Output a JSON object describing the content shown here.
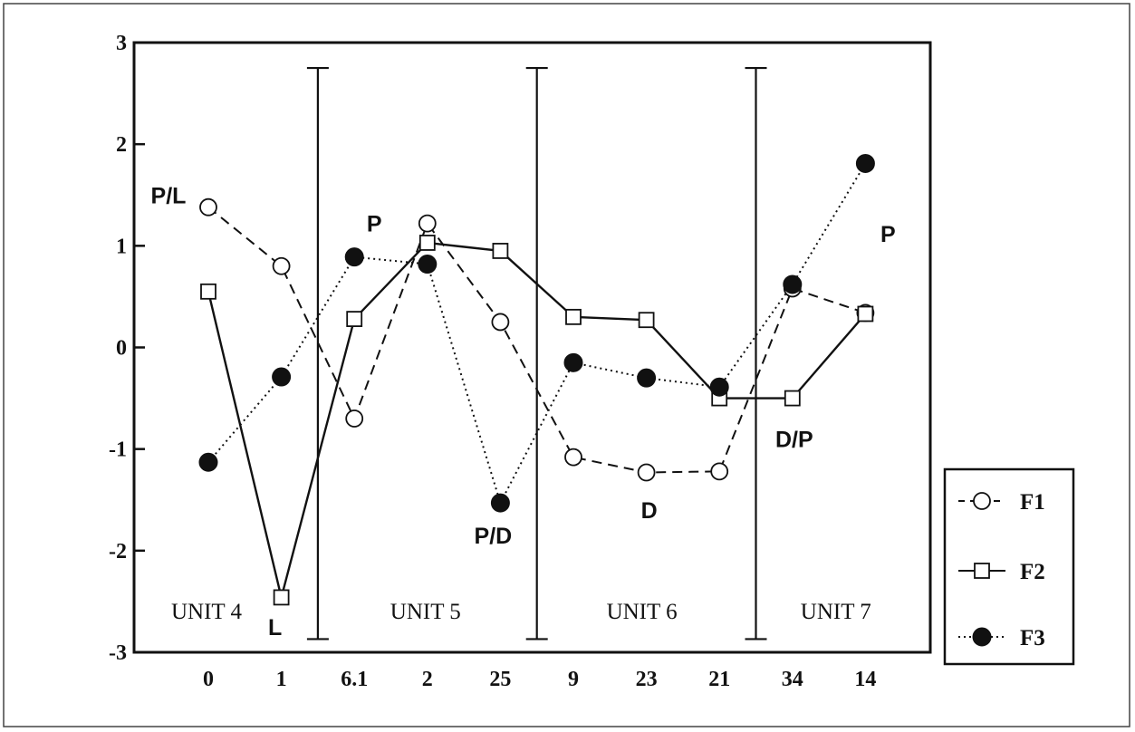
{
  "chart_data": {
    "type": "line",
    "categories": [
      "0",
      "1",
      "6.1",
      "2",
      "25",
      "9",
      "23",
      "21",
      "34",
      "14"
    ],
    "ylim": [
      -3,
      3
    ],
    "yticks": [
      "3",
      "2",
      "1",
      "0",
      "-1",
      "-2",
      "-3"
    ],
    "grid": false,
    "legend_position": "bottom-right, outside plot",
    "series": [
      {
        "name": "F1",
        "marker": "open-circle",
        "line": "dashed",
        "values": [
          1.38,
          0.8,
          -0.7,
          1.22,
          0.25,
          -1.08,
          -1.23,
          -1.22,
          0.58,
          0.34
        ]
      },
      {
        "name": "F2",
        "marker": "open-square",
        "line": "solid",
        "values": [
          0.55,
          -2.46,
          0.28,
          1.03,
          0.95,
          0.3,
          0.27,
          -0.5,
          -0.5,
          0.33
        ]
      },
      {
        "name": "F3",
        "marker": "filled-circle",
        "line": "dotted",
        "values": [
          -1.13,
          -0.29,
          0.89,
          0.82,
          -1.53,
          -0.15,
          -0.3,
          -0.39,
          0.62,
          1.81
        ]
      }
    ],
    "dividers": [
      {
        "between": [
          "1",
          "6.1"
        ]
      },
      {
        "between": [
          "25",
          "9"
        ]
      },
      {
        "between": [
          "21",
          "34"
        ]
      }
    ],
    "units": [
      {
        "label": "UNIT 4",
        "category": "0"
      },
      {
        "label": "UNIT 5",
        "category": "2"
      },
      {
        "label": "UNIT 6",
        "category": "23"
      },
      {
        "label": "UNIT 7",
        "category": "34"
      }
    ],
    "annotations": [
      {
        "text": "P/L",
        "category": "0",
        "y": 1.5
      },
      {
        "text": "L",
        "category": "1",
        "y": -2.75
      },
      {
        "text": "P",
        "category": "6.1",
        "y": 1.22
      },
      {
        "text": "P/D",
        "category": "25",
        "y": -1.85
      },
      {
        "text": "D",
        "category": "23",
        "y": -1.6
      },
      {
        "text": "D/P",
        "category": "34",
        "y": -0.9
      },
      {
        "text": "P",
        "category": "14",
        "y": 1.12
      }
    ]
  }
}
